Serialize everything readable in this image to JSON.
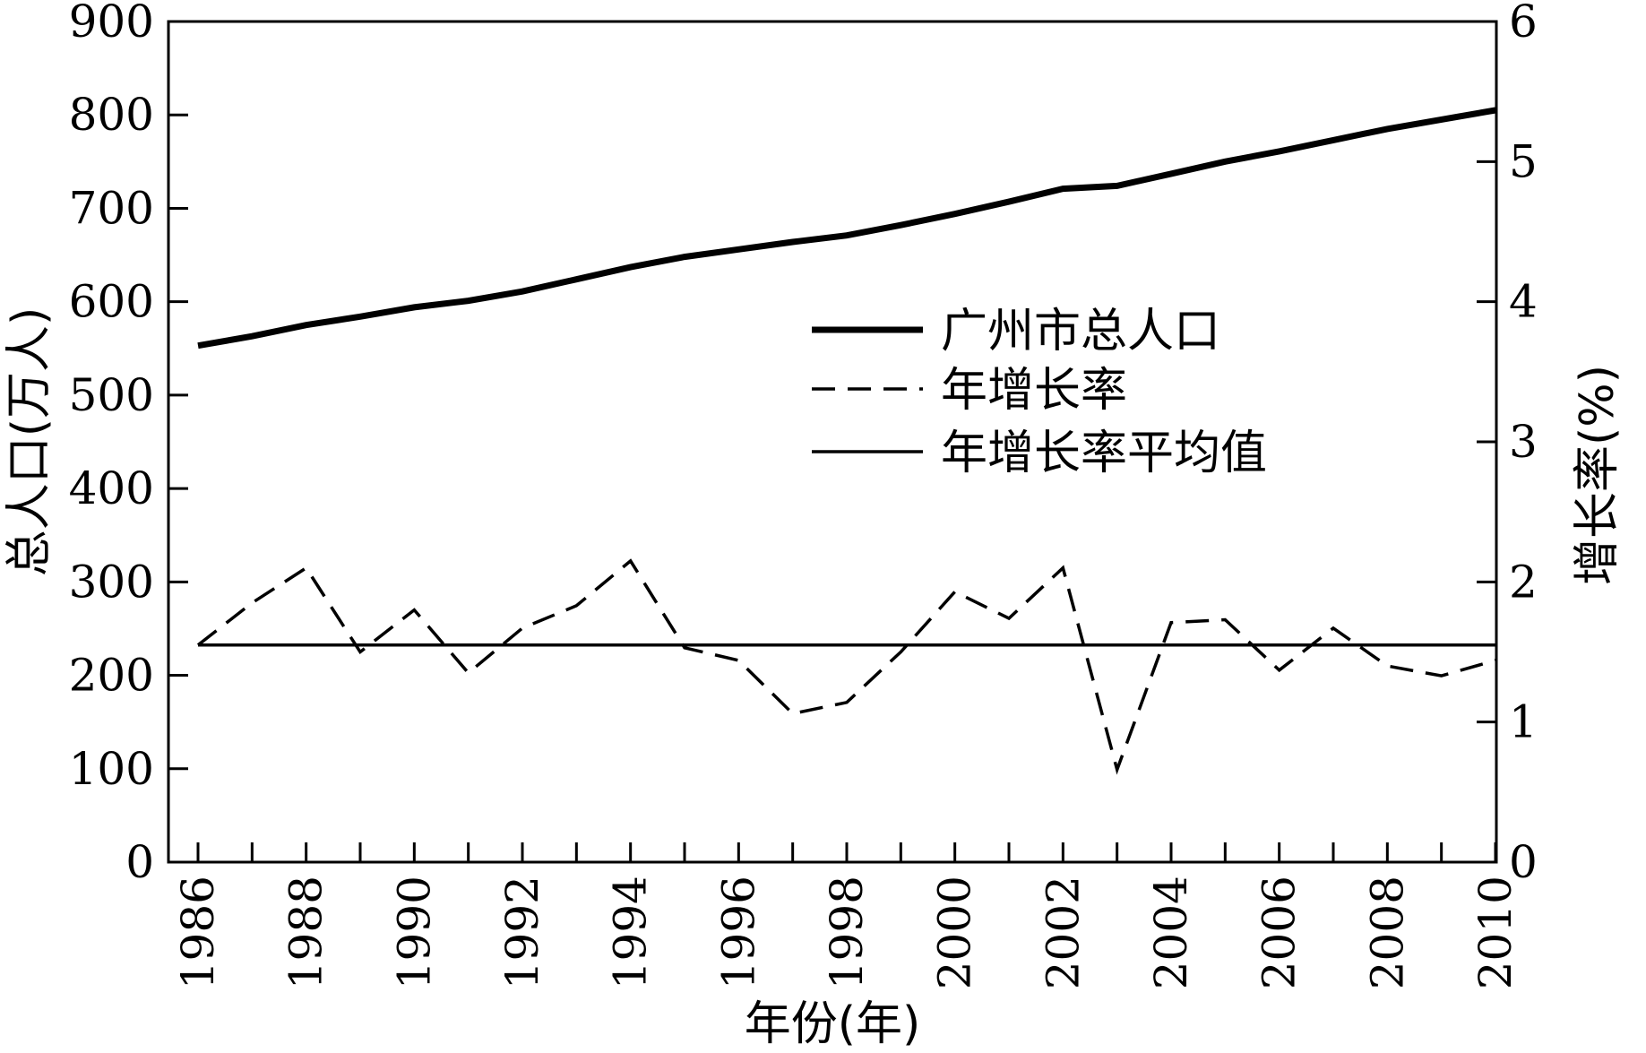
{
  "chart_data": {
    "type": "line",
    "x": [
      1986,
      1987,
      1988,
      1989,
      1990,
      1991,
      1992,
      1993,
      1994,
      1995,
      1996,
      1997,
      1998,
      1999,
      2000,
      2001,
      2002,
      2003,
      2004,
      2005,
      2006,
      2007,
      2008,
      2009,
      2010
    ],
    "xlabel": "年份(年)",
    "ylabel_left": "总人口(万人)",
    "ylabel_right": "增长率(%)",
    "ylim_left": [
      0,
      900
    ],
    "ylim_right": [
      0,
      6
    ],
    "x_ticks": [
      "1986",
      "1988",
      "1990",
      "1992",
      "1994",
      "1996",
      "1998",
      "2000",
      "2002",
      "2004",
      "2006",
      "2008",
      "2010"
    ],
    "y_ticks_left": [
      "0",
      "100",
      "200",
      "300",
      "400",
      "500",
      "600",
      "700",
      "800",
      "900"
    ],
    "y_ticks_right": [
      "0",
      "1",
      "2",
      "3",
      "4",
      "5",
      "6"
    ],
    "legend_position": "center-right",
    "grid": false,
    "series": [
      {
        "name": "广州市总人口",
        "axis": "left",
        "style": "solid-thick",
        "values": [
          553,
          563,
          575,
          584,
          594,
          601,
          611,
          624,
          637,
          648,
          656,
          664,
          671,
          682,
          694,
          707,
          721,
          724,
          737,
          750,
          761,
          773,
          785,
          795,
          805
        ]
      },
      {
        "name": "年增长率",
        "axis": "right",
        "style": "dashed",
        "values": [
          1.55,
          1.85,
          2.1,
          1.5,
          1.8,
          1.35,
          1.67,
          1.83,
          2.15,
          1.53,
          1.44,
          1.06,
          1.14,
          1.5,
          1.93,
          1.74,
          2.1,
          0.66,
          1.71,
          1.73,
          1.37,
          1.67,
          1.4,
          1.33,
          1.44
        ]
      },
      {
        "name": "年增长率平均值",
        "axis": "right",
        "style": "solid-thin",
        "values": [
          1.55,
          1.55,
          1.55,
          1.55,
          1.55,
          1.55,
          1.55,
          1.55,
          1.55,
          1.55,
          1.55,
          1.55,
          1.55,
          1.55,
          1.55,
          1.55,
          1.55,
          1.55,
          1.55,
          1.55,
          1.55,
          1.55,
          1.55,
          1.55,
          1.55
        ]
      }
    ]
  }
}
